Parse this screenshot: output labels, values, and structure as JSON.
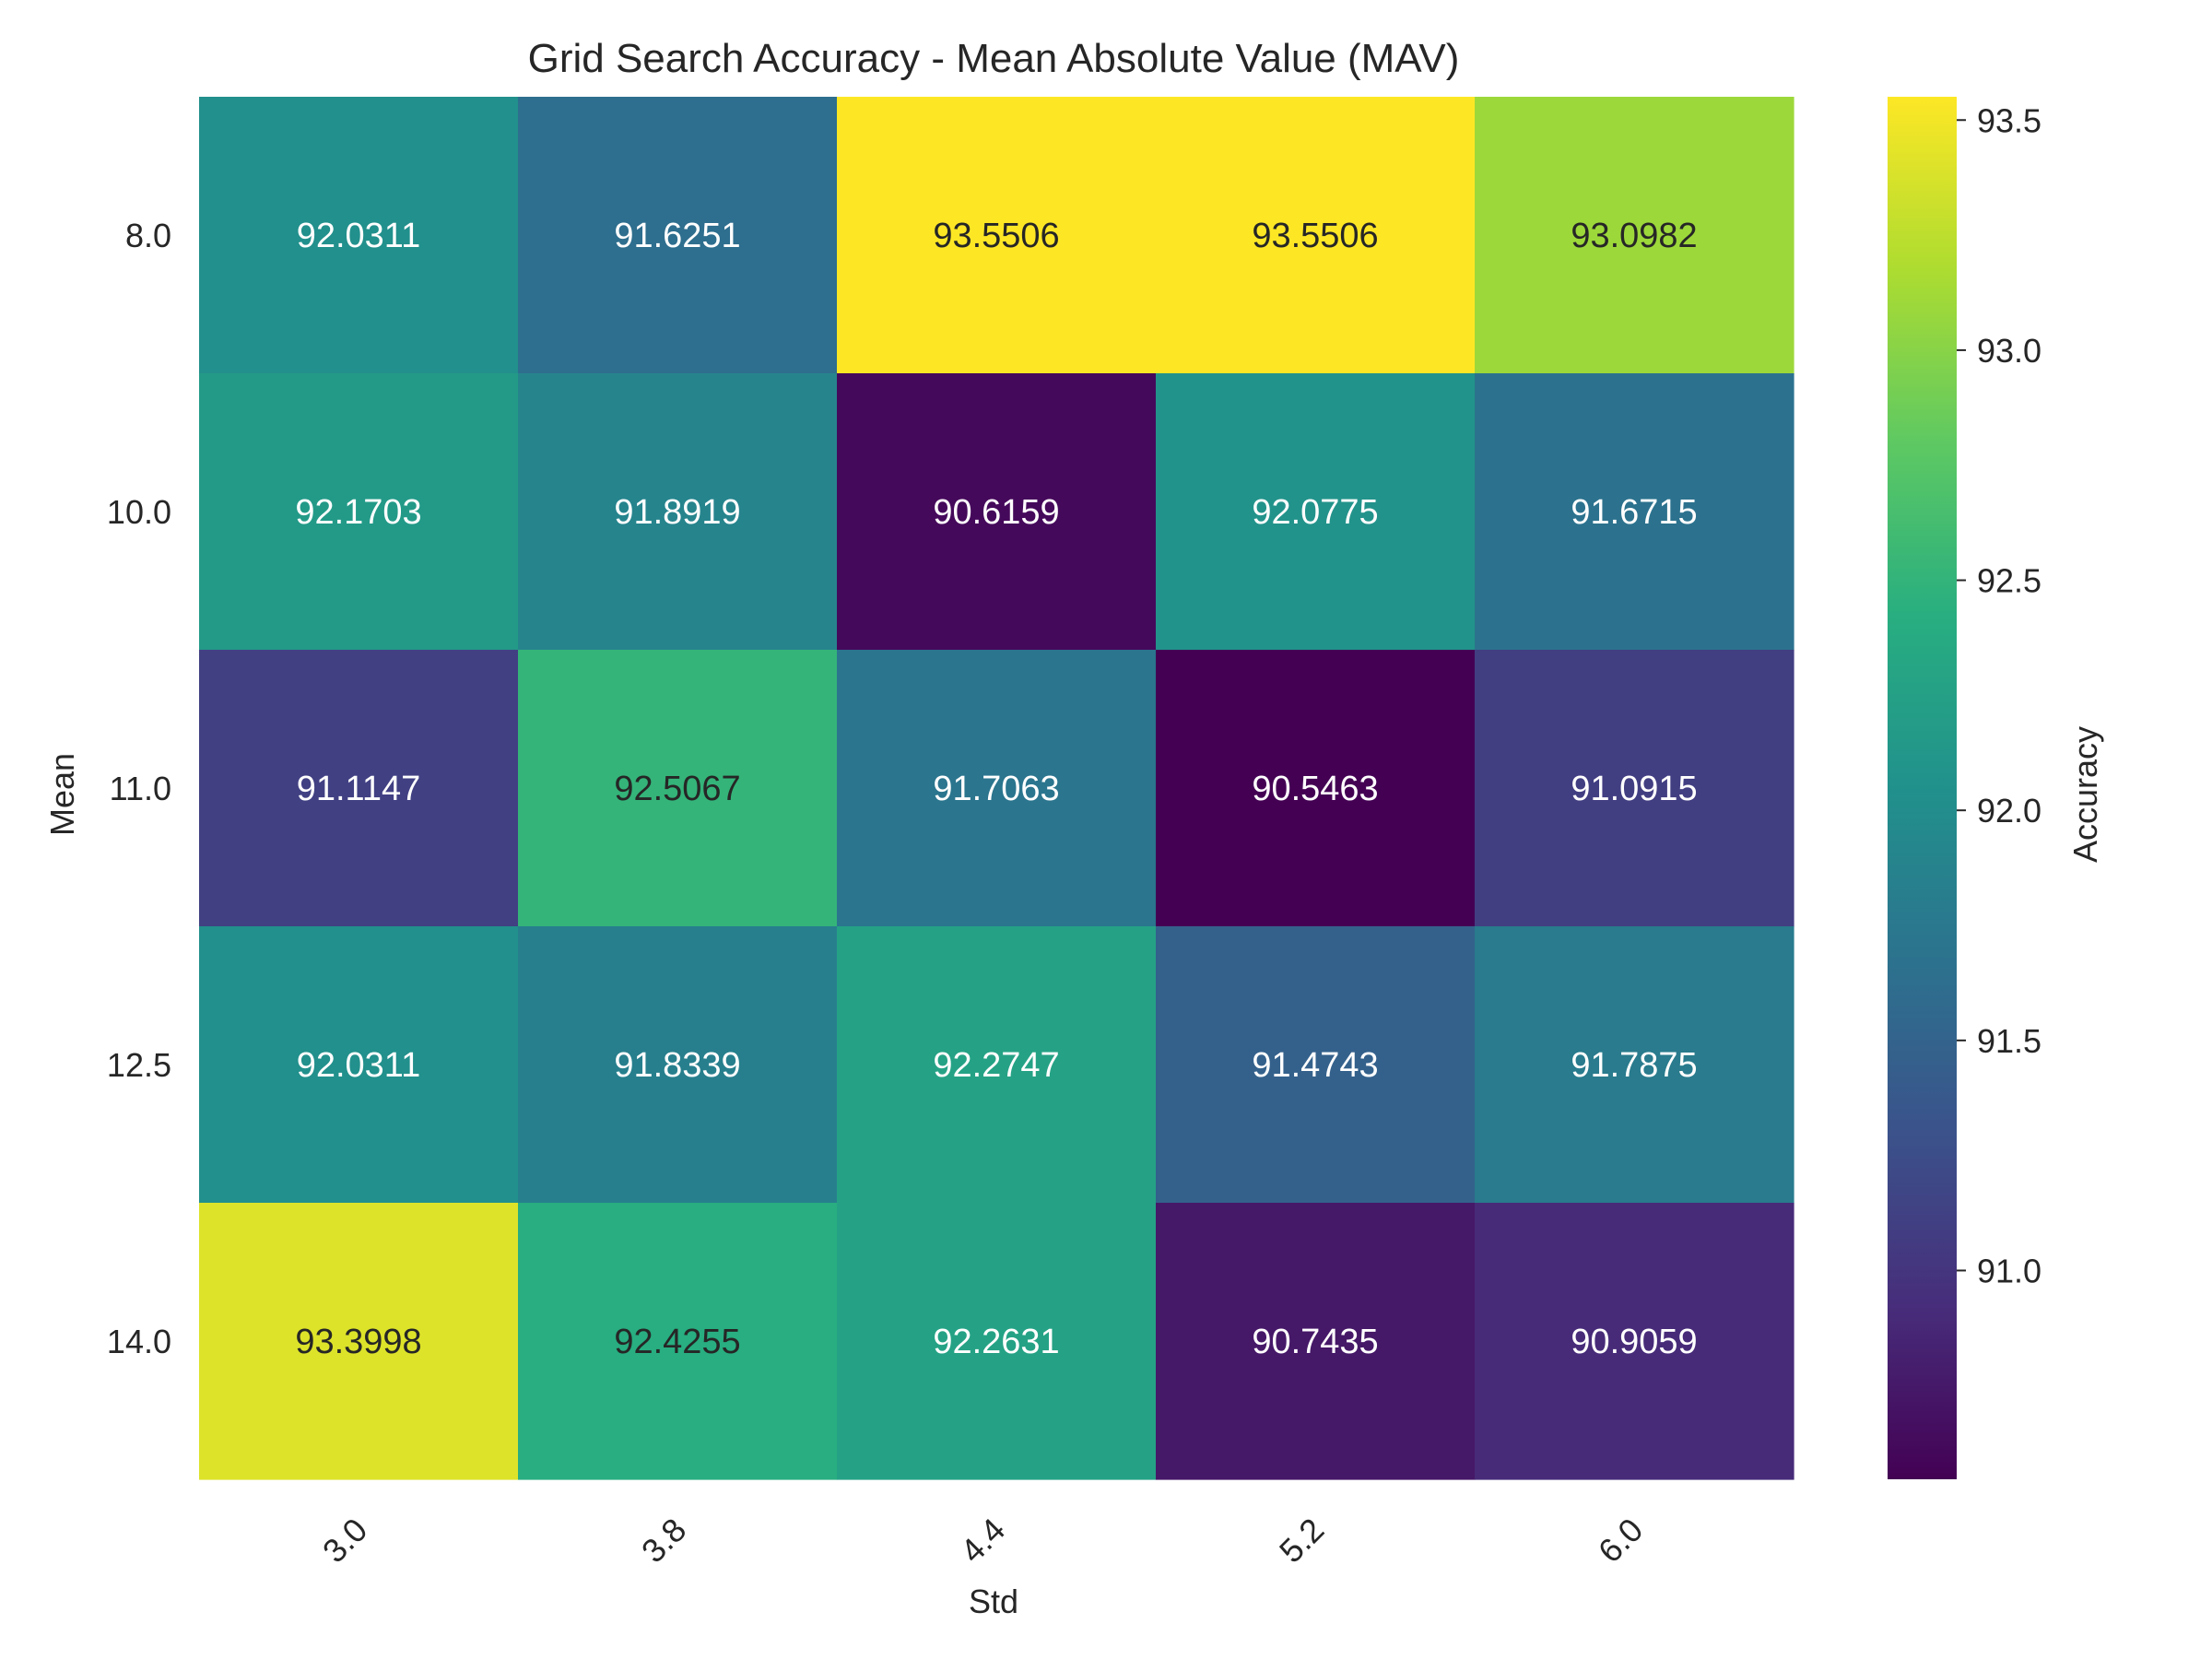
{
  "chart_data": {
    "type": "heatmap",
    "title": "Grid Search Accuracy - Mean Absolute Value (MAV)",
    "xlabel": "Std",
    "ylabel": "Mean",
    "x_categories": [
      "3.0",
      "3.8",
      "4.4",
      "5.2",
      "6.0"
    ],
    "y_categories": [
      "8.0",
      "10.0",
      "11.0",
      "12.5",
      "14.0"
    ],
    "values": [
      [
        92.0311,
        91.6251,
        93.5506,
        93.5506,
        93.0982
      ],
      [
        92.1703,
        91.8919,
        90.6159,
        92.0775,
        91.6715
      ],
      [
        91.1147,
        92.5067,
        91.7063,
        90.5463,
        91.0915
      ],
      [
        92.0311,
        91.8339,
        92.2747,
        91.4743,
        91.7875
      ],
      [
        93.3998,
        92.4255,
        92.2631,
        90.7435,
        90.9059
      ]
    ],
    "value_labels": [
      [
        "92.0311",
        "91.6251",
        "93.5506",
        "93.5506",
        "93.0982"
      ],
      [
        "92.1703",
        "91.8919",
        "90.6159",
        "92.0775",
        "91.6715"
      ],
      [
        "91.1147",
        "92.5067",
        "91.7063",
        "90.5463",
        "91.0915"
      ],
      [
        "92.0311",
        "91.8339",
        "92.2747",
        "91.4743",
        "91.7875"
      ],
      [
        "93.3998",
        "92.4255",
        "92.2631",
        "90.7435",
        "90.9059"
      ]
    ],
    "colormap": "viridis",
    "vmin": 90.5463,
    "vmax": 93.5506,
    "colorbar": {
      "label": "Accuracy",
      "ticks": [
        91.0,
        91.5,
        92.0,
        92.5,
        93.0,
        93.5
      ],
      "tick_labels": [
        "91.0",
        "91.5",
        "92.0",
        "92.5",
        "93.0",
        "93.5"
      ]
    },
    "x_tick_rotation": 45
  }
}
